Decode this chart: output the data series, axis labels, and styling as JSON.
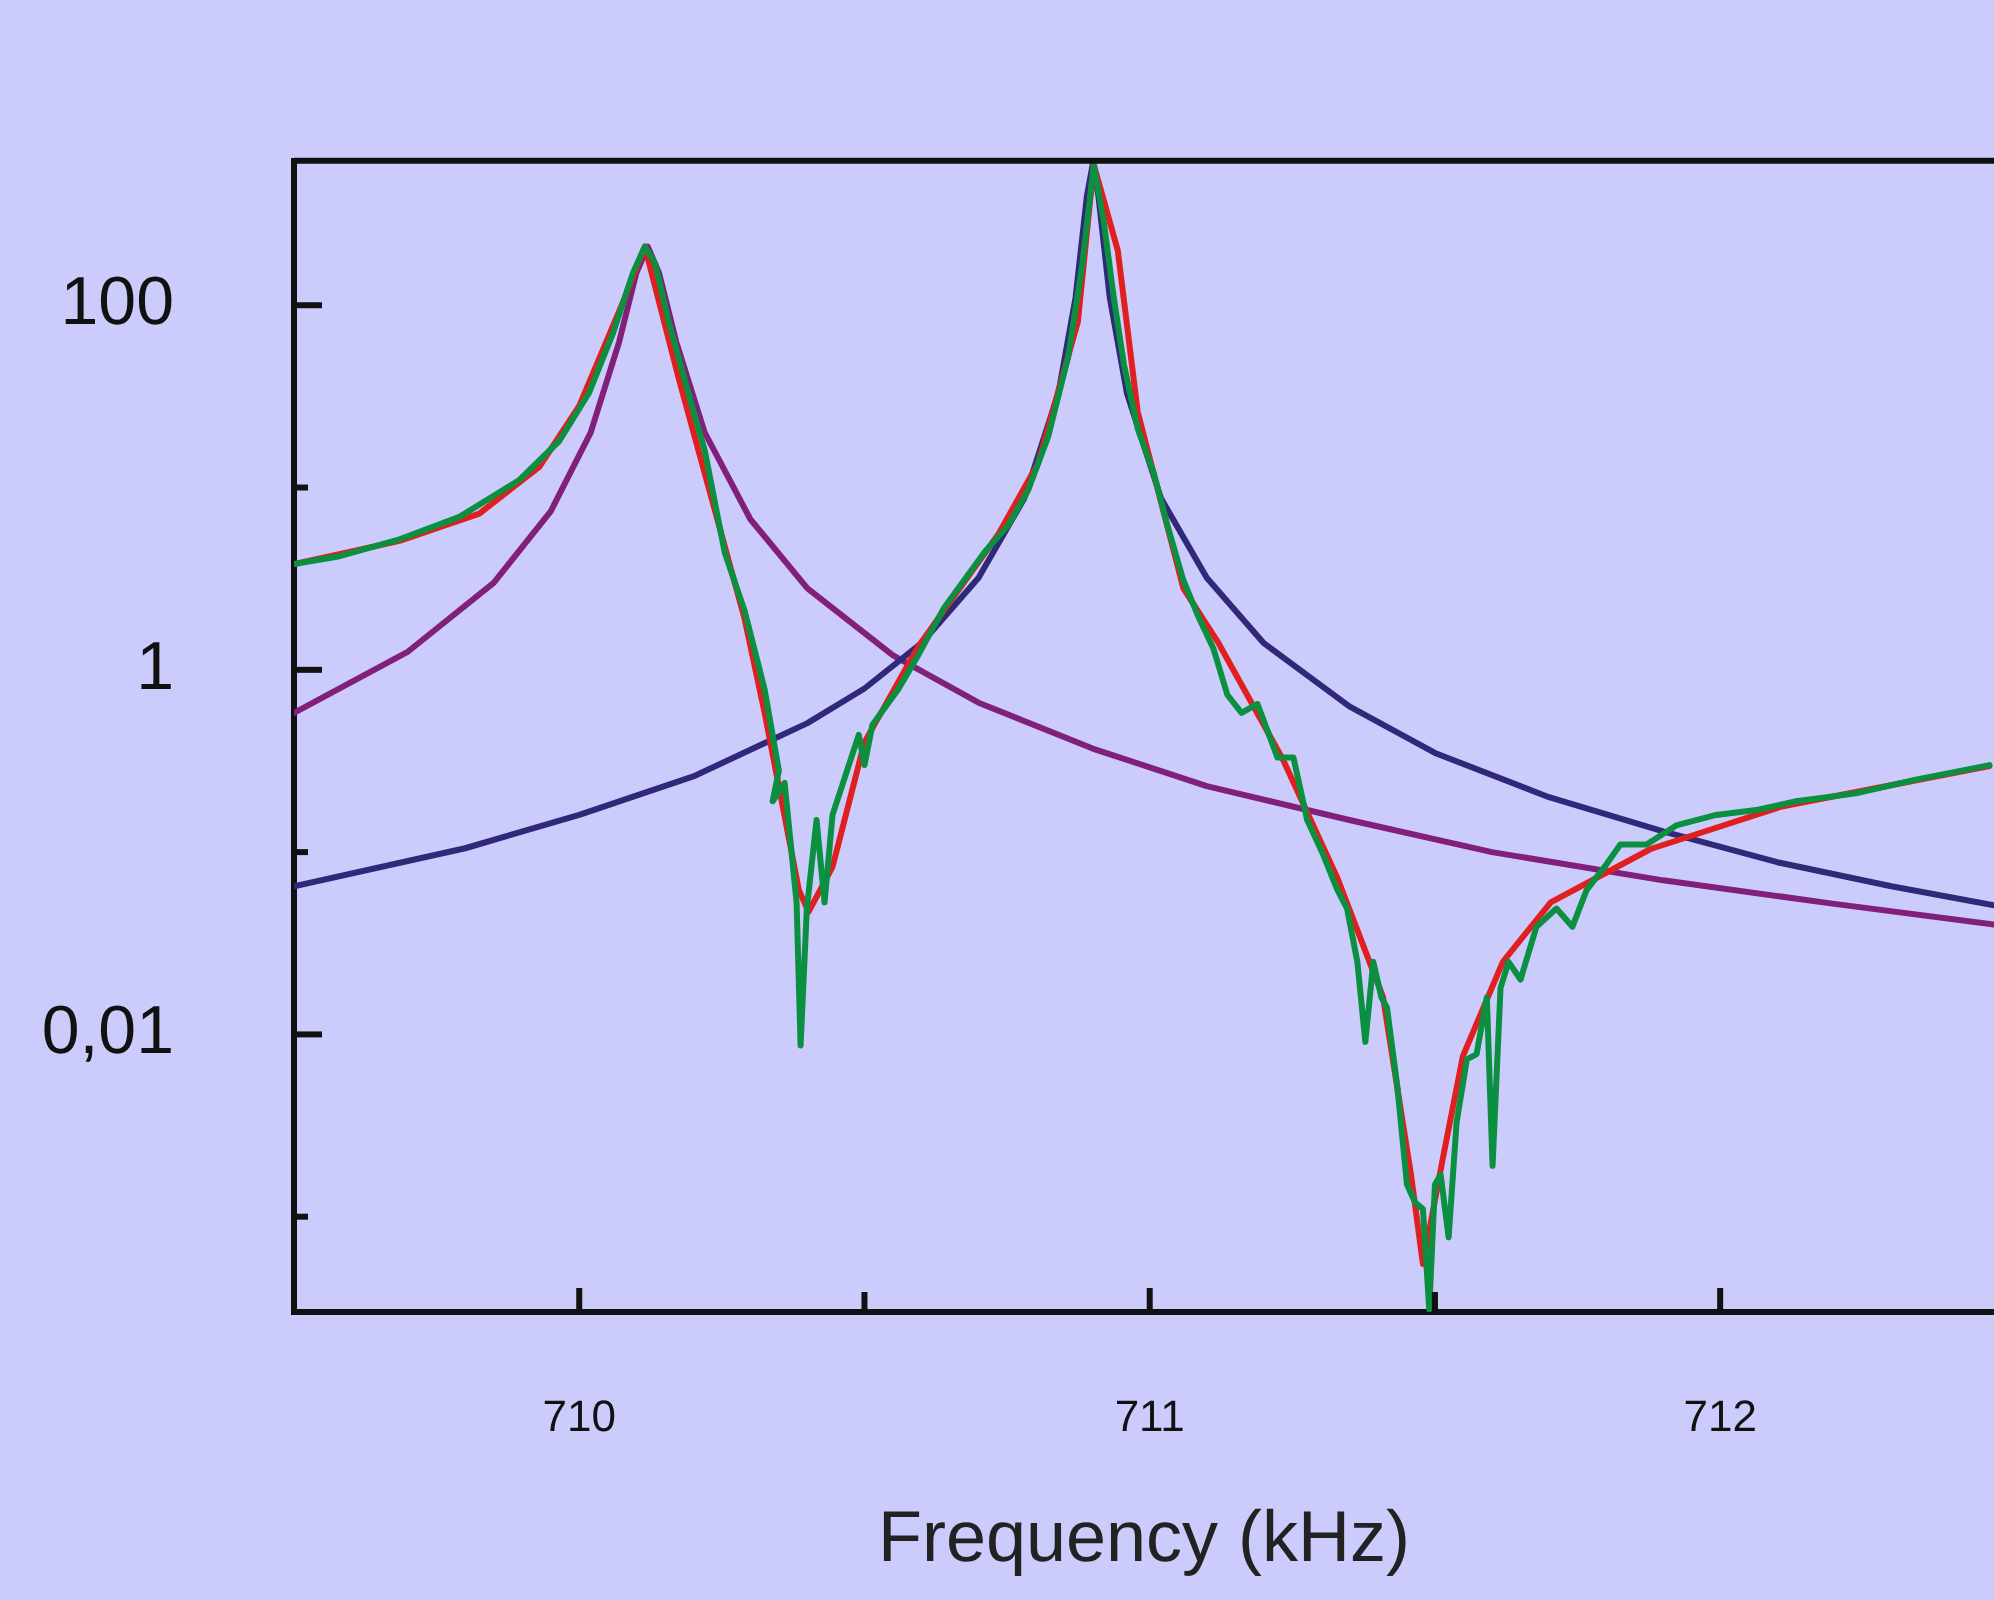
{
  "chart_data": {
    "type": "line",
    "xlabel": "Frequency (kHz)",
    "log": "y",
    "grid": false,
    "legend": false,
    "marker": "none",
    "line_style": "solid",
    "xlim": [
      709.5,
      712.48
    ],
    "xticks": [
      710,
      {
        "value": 710.5,
        "label": null
      },
      711,
      {
        "value": 711.5,
        "label": null
      },
      712
    ],
    "ylim": [
      0.0003,
      620
    ],
    "yticks": [
      {
        "value": 0.001,
        "label": null
      },
      {
        "value": 0.01,
        "label": "0,01"
      },
      {
        "value": 0.1,
        "label": null
      },
      1,
      {
        "value": 10,
        "label": null
      },
      100
    ],
    "series": [
      {
        "color": "#80207a",
        "x": [
          709.5,
          709.7,
          709.85,
          709.95,
          710.02,
          710.07,
          710.1,
          710.12,
          710.14,
          710.17,
          710.22,
          710.3,
          710.4,
          710.55,
          710.7,
          710.9,
          711.1,
          711.35,
          711.6,
          711.9,
          712.2,
          712.48
        ],
        "values": [
          0.58,
          1.26,
          3.0,
          7.4,
          20,
          63,
          150,
          210,
          150,
          63,
          20,
          6.7,
          2.8,
          1.2,
          0.66,
          0.37,
          0.23,
          0.15,
          0.1,
          0.07,
          0.052,
          0.04
        ]
      },
      {
        "color": "#302878",
        "x": [
          709.5,
          709.8,
          710.0,
          710.2,
          710.4,
          710.5,
          710.6,
          710.7,
          710.78,
          710.84,
          710.87,
          710.89,
          710.9,
          710.91,
          710.93,
          710.96,
          711.02,
          711.1,
          711.2,
          711.35,
          711.5,
          711.7,
          711.9,
          712.1,
          712.3,
          712.48
        ],
        "values": [
          0.065,
          0.105,
          0.16,
          0.26,
          0.51,
          0.79,
          1.4,
          3.2,
          8.7,
          33,
          110,
          400,
          590,
          400,
          110,
          33,
          8.7,
          3.2,
          1.4,
          0.63,
          0.35,
          0.2,
          0.13,
          0.088,
          0.065,
          0.051
        ]
      },
      {
        "color": "#e02020",
        "x": [
          709.5,
          709.685,
          709.825,
          709.93,
          710.0,
          710.08,
          710.115,
          710.175,
          710.29,
          710.325,
          710.385,
          710.402,
          710.444,
          710.5,
          710.594,
          710.734,
          710.804,
          710.874,
          710.902,
          710.944,
          710.979,
          711.059,
          711.119,
          711.234,
          711.329,
          711.409,
          711.458,
          711.479,
          711.514,
          711.549,
          711.619,
          711.703,
          711.878,
          712.108,
          712.472
        ],
        "values": [
          3.8,
          5.1,
          7.2,
          13,
          28,
          110,
          210,
          39,
          1.9,
          0.58,
          0.062,
          0.047,
          0.083,
          0.4,
          1.34,
          5.5,
          13.5,
          81,
          590,
          200,
          26,
          2.8,
          1.43,
          0.32,
          0.072,
          0.016,
          0.0017,
          0.00055,
          0.0021,
          0.0076,
          0.025,
          0.053,
          0.104,
          0.178,
          0.297
        ]
      },
      {
        "color": "#0a9040",
        "x": [
          709.5,
          709.58,
          709.685,
          709.79,
          709.895,
          709.965,
          710.017,
          710.059,
          710.094,
          710.115,
          710.133,
          710.157,
          710.199,
          710.22,
          710.255,
          710.29,
          710.325,
          710.35,
          710.339,
          710.36,
          710.381,
          710.388,
          710.399,
          710.416,
          710.43,
          710.444,
          710.49,
          710.5,
          710.514,
          710.559,
          710.594,
          710.64,
          710.71,
          710.752,
          710.787,
          710.822,
          710.857,
          710.881,
          710.902,
          710.92,
          710.937,
          710.955,
          710.979,
          711.007,
          711.031,
          711.059,
          711.084,
          711.112,
          711.136,
          711.161,
          711.189,
          711.224,
          711.252,
          711.276,
          711.304,
          711.329,
          711.346,
          711.364,
          711.378,
          711.392,
          711.406,
          711.416,
          711.434,
          711.451,
          711.465,
          711.479,
          711.49,
          711.5,
          711.51,
          711.524,
          711.538,
          711.556,
          711.573,
          711.591,
          711.601,
          711.615,
          711.629,
          711.65,
          711.678,
          711.713,
          711.741,
          711.766,
          711.801,
          711.825,
          711.871,
          711.923,
          711.993,
          712.063,
          712.133,
          712.238,
          712.343,
          712.472
        ],
        "values": [
          3.8,
          4.2,
          5.2,
          6.9,
          11,
          18,
          33,
          70,
          150,
          210,
          170,
          81,
          27,
          16,
          4.4,
          2.1,
          0.78,
          0.28,
          0.19,
          0.24,
          0.053,
          0.0087,
          0.049,
          0.15,
          0.053,
          0.16,
          0.44,
          0.3,
          0.5,
          0.78,
          1.2,
          2.2,
          4.4,
          6.2,
          9.7,
          19,
          52,
          160,
          590,
          280,
          110,
          47,
          21,
          12,
          6.2,
          3.1,
          2.0,
          1.3,
          0.73,
          0.58,
          0.65,
          0.33,
          0.33,
          0.15,
          0.097,
          0.062,
          0.049,
          0.025,
          0.0091,
          0.025,
          0.016,
          0.014,
          0.0052,
          0.0015,
          0.0012,
          0.0011,
          0.00031,
          0.0015,
          0.0017,
          0.00077,
          0.0033,
          0.0073,
          0.0078,
          0.016,
          0.0019,
          0.018,
          0.025,
          0.02,
          0.039,
          0.049,
          0.039,
          0.062,
          0.086,
          0.11,
          0.11,
          0.14,
          0.16,
          0.17,
          0.19,
          0.21,
          0.25,
          0.3
        ]
      }
    ]
  }
}
